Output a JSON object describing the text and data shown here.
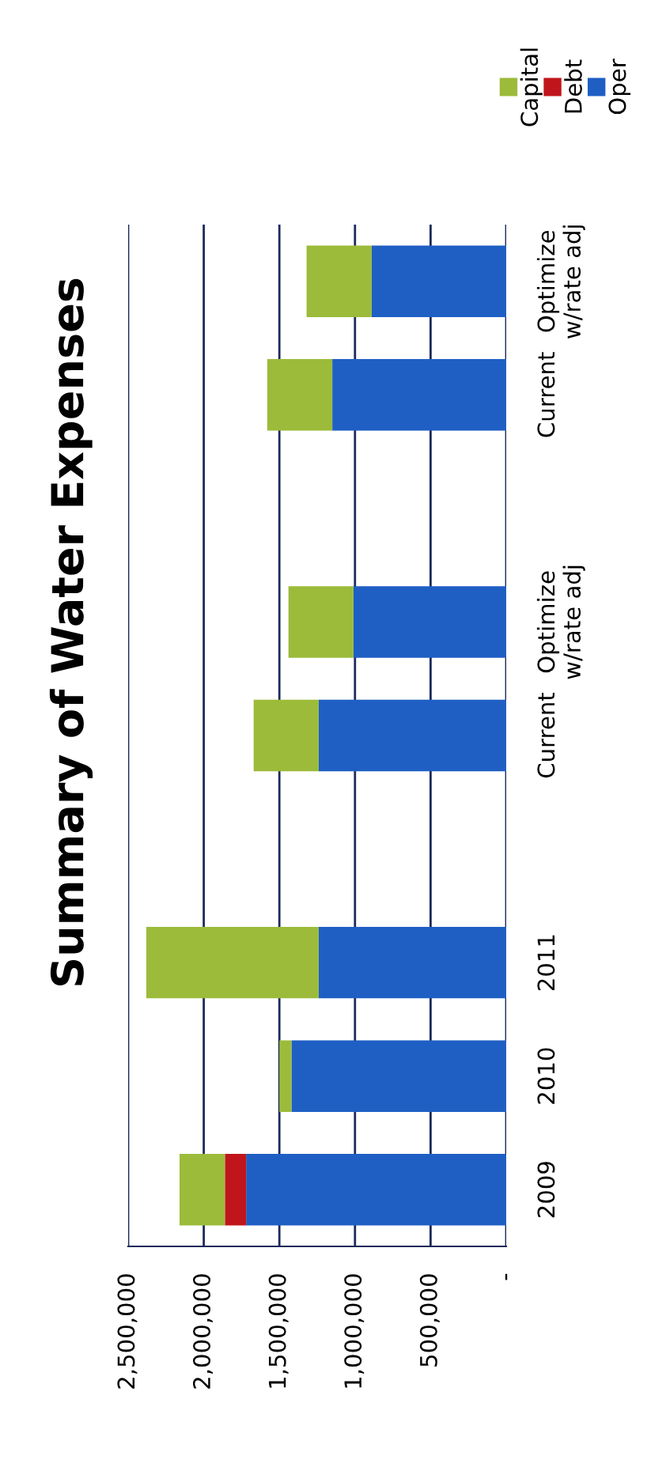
{
  "chart_data": {
    "type": "bar",
    "title": "Summary of Water Expenses",
    "orientation": "horizontal",
    "categories": [
      "Optimize\nw/rate adj",
      "Current",
      null,
      "Optimize\nw/rate adj",
      "Current",
      null,
      "2011",
      "2010",
      "2009"
    ],
    "stacked": true,
    "series": [
      {
        "name": "Oper",
        "color": "#1f5fc4",
        "values": [
          890000,
          1150000,
          null,
          1010000,
          1240000,
          null,
          1240000,
          1420000,
          1720000
        ]
      },
      {
        "name": "Debt",
        "color": "#c0161b",
        "values": [
          null,
          null,
          null,
          null,
          null,
          null,
          null,
          null,
          140000
        ]
      },
      {
        "name": "Capital",
        "color": "#9cbb3a",
        "values": [
          430000,
          430000,
          null,
          430000,
          430000,
          null,
          1140000,
          80000,
          300000
        ]
      }
    ],
    "xlim": [
      2500000,
      0
    ],
    "xticks": [
      {
        "value": 0,
        "label": "-"
      },
      {
        "value": 500000,
        "label": "500,000"
      },
      {
        "value": 1000000,
        "label": "1,000,000"
      },
      {
        "value": 1500000,
        "label": "1,500,000"
      },
      {
        "value": 2000000,
        "label": "2,000,000"
      },
      {
        "value": 2500000,
        "label": "2,500,000"
      }
    ],
    "grid": "x",
    "legend": "top right"
  }
}
